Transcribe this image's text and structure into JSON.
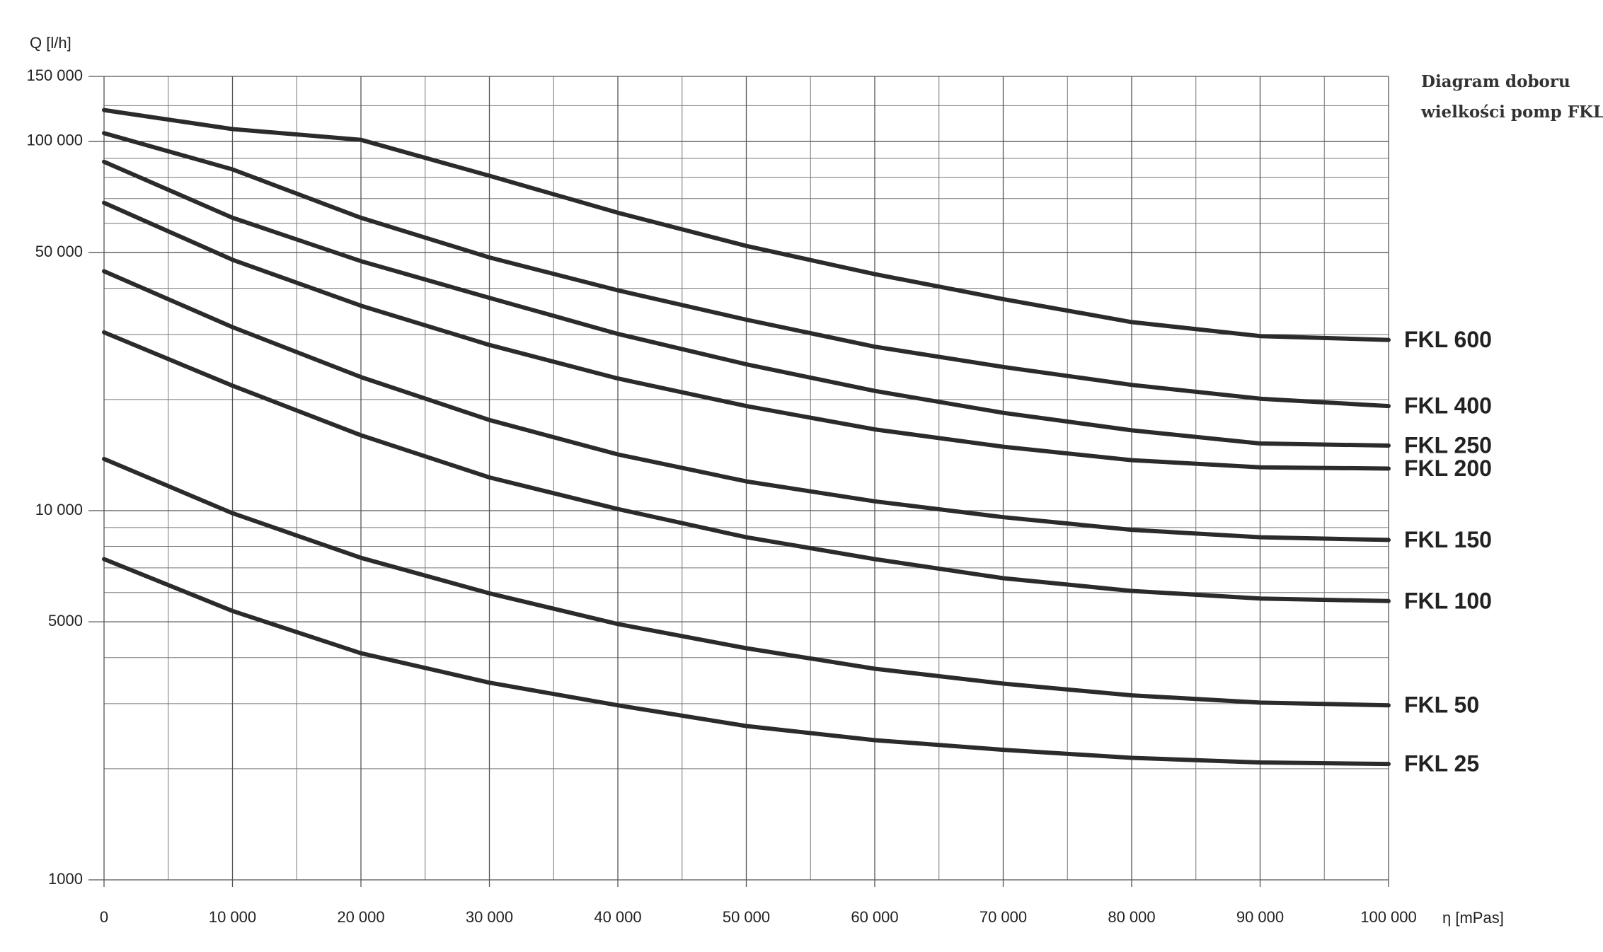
{
  "chart_data": {
    "type": "line",
    "title": "Diagram doboru",
    "subtitle": "wielkości pomp FKL",
    "y_label": "Q [l/h]",
    "x_label": "η [mPas]",
    "log_y": true,
    "grid": true,
    "x": [
      0,
      10000,
      20000,
      30000,
      40000,
      50000,
      60000,
      70000,
      80000,
      90000,
      100000
    ],
    "xlim": [
      0,
      100000
    ],
    "xticks": [
      0,
      {
        "value": 10000,
        "label": "10 000"
      },
      {
        "value": 20000,
        "label": "20 000"
      },
      {
        "value": 30000,
        "label": "30 000"
      },
      {
        "value": 40000,
        "label": "40 000"
      },
      {
        "value": 50000,
        "label": "50 000"
      },
      {
        "value": 60000,
        "label": "60 000"
      },
      {
        "value": 70000,
        "label": "70 000"
      },
      {
        "value": 80000,
        "label": "80 000"
      },
      {
        "value": 90000,
        "label": "90 000"
      },
      {
        "value": 100000,
        "label": "100 000"
      }
    ],
    "xminor": [
      5000,
      15000,
      25000,
      35000,
      45000,
      55000,
      65000,
      75000,
      85000,
      95000
    ],
    "ylim": [
      1000,
      150000
    ],
    "yticks": [
      1000,
      5000,
      {
        "value": 10000,
        "label": "10 000"
      },
      {
        "value": 50000,
        "label": "50 000"
      },
      {
        "value": 100000,
        "label": "100 000"
      },
      {
        "value": 150000,
        "label": "150 000"
      }
    ],
    "yminor": [
      2000,
      3000,
      4000,
      6000,
      7000,
      8000,
      9000,
      20000,
      30000,
      40000,
      60000,
      70000,
      80000,
      90000,
      125000
    ],
    "series": [
      {
        "name": "FKL 600",
        "color": "#2b2b2b",
        "values": [
          121600,
          108000,
          101000,
          80700,
          64100,
          52100,
          43700,
          37400,
          32400,
          29700,
          29000
        ]
      },
      {
        "name": "FKL 400",
        "color": "#2b2b2b",
        "values": [
          105300,
          84000,
          62100,
          48500,
          39500,
          32900,
          27800,
          24500,
          21900,
          20100,
          19200
        ]
      },
      {
        "name": "FKL 250",
        "color": "#2b2b2b",
        "values": [
          88100,
          62100,
          47400,
          37700,
          30100,
          24900,
          21100,
          18400,
          16500,
          15200,
          15000
        ]
      },
      {
        "name": "FKL 200",
        "color": "#2b2b2b",
        "values": [
          68200,
          47800,
          35900,
          28100,
          22800,
          19200,
          16600,
          14900,
          13700,
          13100,
          13000
        ]
      },
      {
        "name": "FKL 150",
        "color": "#2b2b2b",
        "values": [
          44500,
          31400,
          23000,
          17600,
          14200,
          12000,
          10600,
          9600,
          8870,
          8470,
          8330
        ]
      },
      {
        "name": "FKL 100",
        "color": "#2b2b2b",
        "values": [
          30400,
          21800,
          16000,
          12300,
          10100,
          8470,
          7390,
          6560,
          6060,
          5780,
          5690
        ]
      },
      {
        "name": "FKL 50",
        "color": "#2b2b2b",
        "values": [
          13800,
          9840,
          7450,
          5970,
          4930,
          4240,
          3730,
          3400,
          3160,
          3020,
          2970
        ]
      },
      {
        "name": "FKL 25",
        "color": "#2b2b2b",
        "values": [
          7390,
          5350,
          4110,
          3420,
          2970,
          2610,
          2390,
          2250,
          2140,
          2080,
          2060
        ]
      }
    ]
  }
}
